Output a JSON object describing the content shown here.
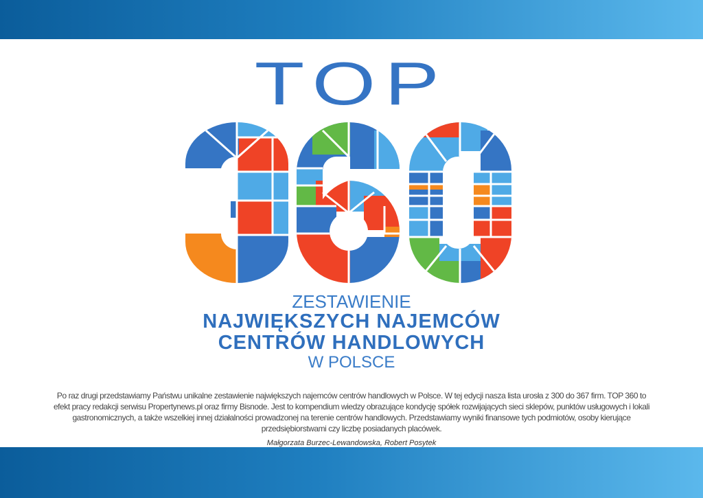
{
  "logo": {
    "top_word": "TOP",
    "number": "360",
    "colors": {
      "blue": "#3575c4",
      "light_blue": "#4faae6",
      "red": "#ef4326",
      "green": "#62b946",
      "orange": "#f5891e"
    }
  },
  "title": {
    "line1": "ZESTAWIENIE",
    "line2": "NAJWIĘKSZYCH NAJEMCÓW",
    "line3": "CENTRÓW HANDLOWYCH",
    "line4": "W POLSCE"
  },
  "intro": "Po raz drugi przedstawiamy Państwu unikalne zestawienie największych najemców centrów handlowych w Polsce. W tej edycji nasza lista urosła z 300 do 367 firm. TOP 360 to efekt pracy redakcji serwisu Propertynews.pl oraz firmy Bisnode. Jest to kompendium wiedzy obrazujące kondycję spółek rozwijających sieci sklepów, punktów usługowych i lokali gastronomicznych, a także wszelkiej innej działalności prowadzonej na terenie centrów handlowych. Przedstawiamy wyniki finansowe tych podmiotów, osoby kierujące przedsiębiorstwami czy liczbę posiadanych placówek.",
  "authors": "Małgorzata Burzec-Lewandowska, Robert Posytek"
}
